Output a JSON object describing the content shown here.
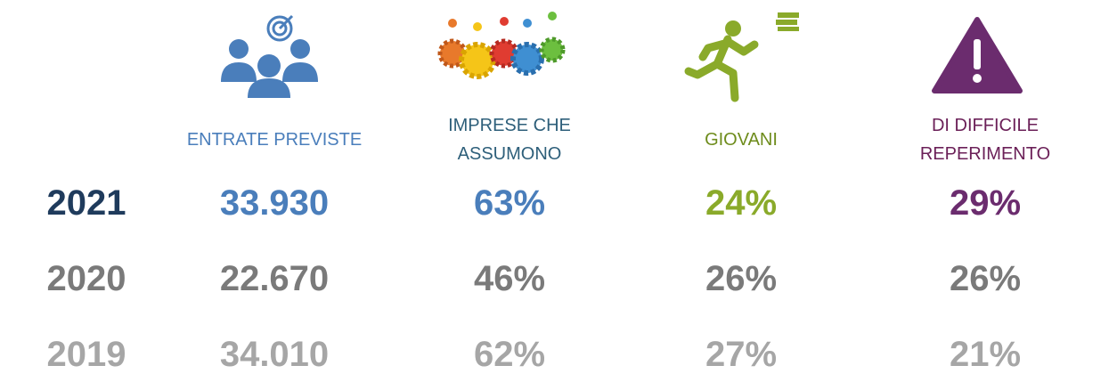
{
  "table": {
    "headers": [
      "ENTRATE PREVISTE",
      "IMPRESE CHE ASSUMONO",
      "GIOVANI",
      "DI DIFFICILE REPERIMENTO"
    ],
    "rows": [
      [
        "2021",
        "33.930",
        "63%",
        "24%",
        "29%"
      ],
      [
        "2020",
        "22.670",
        "46%",
        "26%",
        "26%"
      ],
      [
        "2019",
        "34.010",
        "62%",
        "27%",
        "21%"
      ]
    ]
  }
}
